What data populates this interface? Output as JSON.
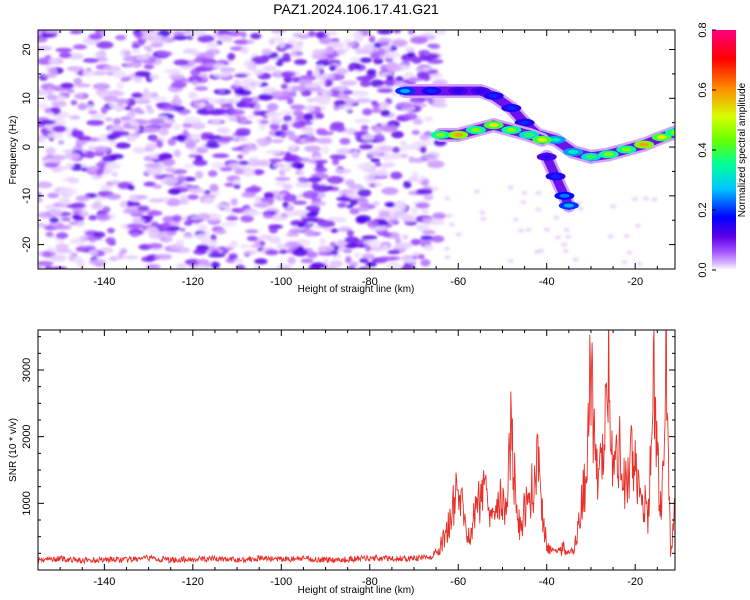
{
  "title": "PAZ1.2024.106.17.41.G21",
  "chart_data": [
    {
      "type": "heatmap",
      "xlabel": "Height of straight line (km)",
      "ylabel": "Frequency (Hz)",
      "xlim": [
        -155,
        -11
      ],
      "ylim": [
        -25,
        24
      ],
      "x_ticks": [
        -140,
        -120,
        -100,
        -80,
        -60,
        -40,
        -20
      ],
      "y_ticks": [
        -20,
        -10,
        0,
        10,
        20
      ],
      "colorbar": {
        "label": "Normalized spectral amplitude",
        "range": [
          0,
          0.8
        ],
        "ticks": [
          0.0,
          0.2,
          0.4,
          0.6,
          0.8
        ],
        "colormap": [
          "#ffffff",
          "#d9b3ff",
          "#a04cff",
          "#5a00e6",
          "#0000ff",
          "#00c8ff",
          "#00ff99",
          "#66ff00",
          "#d9ff00",
          "#ff8800",
          "#ff0000",
          "#ff0080"
        ]
      },
      "tone_track": [
        {
          "x": -72,
          "y": 11.5,
          "amplitude": 0.2
        },
        {
          "x": -66,
          "y": 11.5,
          "amplitude": 0.15
        },
        {
          "x": -60,
          "y": 11.5,
          "amplitude": 0.12
        },
        {
          "x": -55,
          "y": 11.5,
          "amplitude": 0.12
        },
        {
          "x": -52,
          "y": 10.5,
          "amplitude": 0.15
        },
        {
          "x": -48,
          "y": 8,
          "amplitude": 0.15
        },
        {
          "x": -45,
          "y": 5,
          "amplitude": 0.15
        },
        {
          "x": -42,
          "y": 2.5,
          "amplitude": 0.2
        },
        {
          "x": -38,
          "y": 1.5,
          "amplitude": 0.25
        },
        {
          "x": -34,
          "y": -1,
          "amplitude": 0.25
        },
        {
          "x": -30,
          "y": -2,
          "amplitude": 0.3
        },
        {
          "x": -26,
          "y": -1.5,
          "amplitude": 0.35
        },
        {
          "x": -22,
          "y": -0.5,
          "amplitude": 0.35
        },
        {
          "x": -18,
          "y": 0.5,
          "amplitude": 0.45
        },
        {
          "x": -14,
          "y": 2,
          "amplitude": 0.4
        },
        {
          "x": -11,
          "y": 3,
          "amplitude": 0.35
        }
      ],
      "tone_track_2": [
        {
          "x": -64,
          "y": 2.5,
          "amplitude": 0.35
        },
        {
          "x": -60,
          "y": 2.5,
          "amplitude": 0.45
        },
        {
          "x": -56,
          "y": 3.5,
          "amplitude": 0.35
        },
        {
          "x": -52,
          "y": 4.5,
          "amplitude": 0.4
        },
        {
          "x": -48,
          "y": 3.5,
          "amplitude": 0.35
        },
        {
          "x": -44,
          "y": 2.5,
          "amplitude": 0.3
        },
        {
          "x": -41,
          "y": 1.5,
          "amplitude": 0.4
        }
      ],
      "tone_branch": [
        {
          "x": -40,
          "y": -2,
          "amplitude": 0.12
        },
        {
          "x": -38,
          "y": -6,
          "amplitude": 0.15
        },
        {
          "x": -36,
          "y": -10,
          "amplitude": 0.18
        },
        {
          "x": -35,
          "y": -12,
          "amplitude": 0.2
        }
      ]
    },
    {
      "type": "line",
      "xlabel": "Height of straight line (km)",
      "ylabel": "SNR (10 * v/v)",
      "xlim": [
        -155,
        -11
      ],
      "ylim": [
        0,
        3600
      ],
      "x_ticks": [
        -140,
        -120,
        -100,
        -80,
        -60,
        -40,
        -20
      ],
      "y_ticks": [
        1000,
        2000,
        3000
      ],
      "series": [
        {
          "color": "#e8302a",
          "x": [
            -155,
            -150,
            -145,
            -140,
            -135,
            -130,
            -125,
            -120,
            -115,
            -110,
            -105,
            -100,
            -95,
            -90,
            -85,
            -80,
            -75,
            -70,
            -66,
            -64,
            -62,
            -61,
            -60,
            -59,
            -58,
            -57,
            -56,
            -55,
            -54,
            -53,
            -52,
            -51,
            -50,
            -49,
            -48,
            -47,
            -46,
            -45,
            -44,
            -43,
            -42,
            -41,
            -40,
            -39,
            -38,
            -37,
            -36,
            -35,
            -34,
            -33,
            -32,
            -31,
            -30,
            -29,
            -28,
            -27,
            -26,
            -25,
            -24,
            -23,
            -22,
            -21,
            -20,
            -19,
            -18,
            -17,
            -16,
            -15,
            -14,
            -13,
            -12,
            -11
          ],
          "y": [
            150,
            170,
            140,
            160,
            150,
            180,
            150,
            160,
            170,
            150,
            180,
            160,
            170,
            150,
            160,
            180,
            170,
            170,
            200,
            350,
            700,
            1000,
            1200,
            900,
            500,
            600,
            900,
            1100,
            1300,
            1000,
            900,
            1200,
            1000,
            800,
            2300,
            1000,
            600,
            900,
            1100,
            1300,
            1600,
            800,
            400,
            300,
            280,
            300,
            350,
            250,
            300,
            600,
            1000,
            1500,
            3100,
            1600,
            1300,
            2400,
            3250,
            1300,
            1900,
            1700,
            1200,
            1800,
            1600,
            1200,
            1000,
            800,
            3100,
            1500,
            1000,
            3500,
            200,
            900
          ]
        }
      ]
    }
  ]
}
